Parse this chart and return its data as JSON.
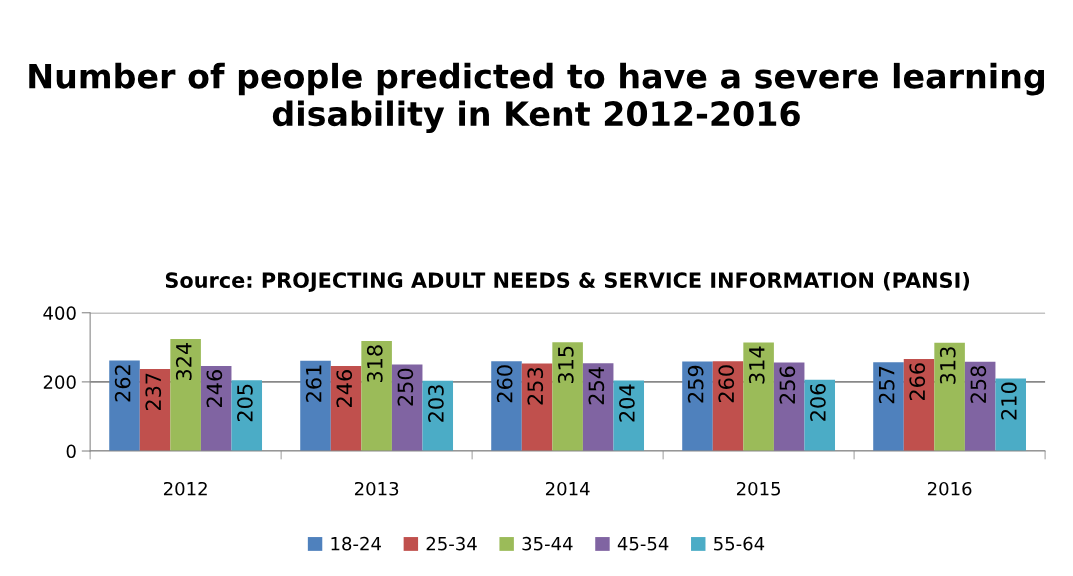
{
  "chart_data": {
    "type": "bar",
    "title": "Number of people predicted to have a severe learning disability in Kent 2012-2016",
    "subtitle": "Source: PROJECTING ADULT NEEDS & SERVICE INFORMATION (PANSI)",
    "categories": [
      "2012",
      "2013",
      "2014",
      "2015",
      "2016"
    ],
    "series": [
      {
        "name": "18-24",
        "color": "#4f81bd",
        "values": [
          262,
          261,
          260,
          259,
          257
        ]
      },
      {
        "name": "25-34",
        "color": "#c0504d",
        "values": [
          237,
          246,
          253,
          260,
          266
        ]
      },
      {
        "name": "35-44",
        "color": "#9bbb59",
        "values": [
          324,
          318,
          315,
          314,
          313
        ]
      },
      {
        "name": "45-54",
        "color": "#8064a2",
        "values": [
          246,
          250,
          254,
          256,
          258
        ]
      },
      {
        "name": "55-64",
        "color": "#4bacc6",
        "values": [
          205,
          203,
          204,
          206,
          210
        ]
      }
    ],
    "ylim": [
      0,
      400
    ],
    "yticks": [
      0,
      200,
      400
    ],
    "grid": "y",
    "legend": "bottom",
    "data_labels": true
  }
}
